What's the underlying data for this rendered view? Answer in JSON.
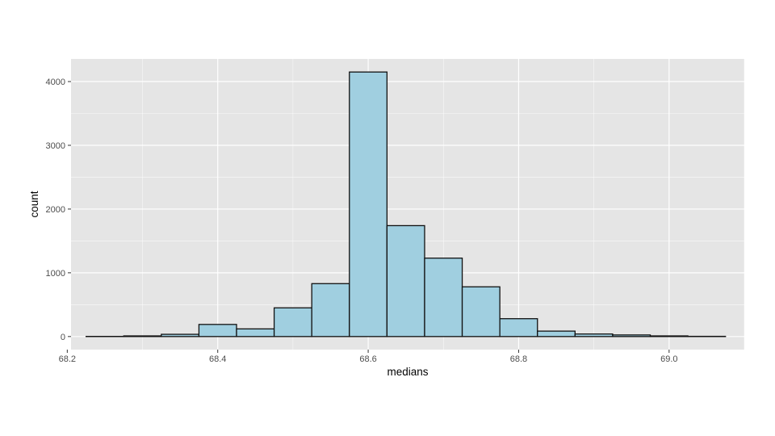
{
  "chart_data": {
    "type": "bar",
    "subtype": "histogram",
    "xlabel": "medians",
    "ylabel": "count",
    "xlim": [
      68.205,
      69.1
    ],
    "ylim": [
      -205,
      4355
    ],
    "x_ticks": [
      68.2,
      68.4,
      68.6,
      68.8,
      69.0
    ],
    "x_tick_labels": [
      "68.2",
      "68.4",
      "68.6",
      "68.8",
      "69.0"
    ],
    "y_ticks": [
      0,
      1000,
      2000,
      3000,
      4000
    ],
    "y_tick_labels": [
      "0",
      "1000",
      "2000",
      "3000",
      "4000"
    ],
    "bin_width": 0.05,
    "bins": [
      {
        "x0": 68.225,
        "x1": 68.275,
        "count": 2
      },
      {
        "x0": 68.275,
        "x1": 68.325,
        "count": 10
      },
      {
        "x0": 68.325,
        "x1": 68.375,
        "count": 35
      },
      {
        "x0": 68.375,
        "x1": 68.425,
        "count": 190
      },
      {
        "x0": 68.425,
        "x1": 68.475,
        "count": 120
      },
      {
        "x0": 68.475,
        "x1": 68.525,
        "count": 450
      },
      {
        "x0": 68.525,
        "x1": 68.575,
        "count": 830
      },
      {
        "x0": 68.575,
        "x1": 68.625,
        "count": 4150
      },
      {
        "x0": 68.625,
        "x1": 68.675,
        "count": 1740
      },
      {
        "x0": 68.675,
        "x1": 68.725,
        "count": 1230
      },
      {
        "x0": 68.725,
        "x1": 68.775,
        "count": 780
      },
      {
        "x0": 68.775,
        "x1": 68.825,
        "count": 280
      },
      {
        "x0": 68.825,
        "x1": 68.875,
        "count": 85
      },
      {
        "x0": 68.875,
        "x1": 68.925,
        "count": 40
      },
      {
        "x0": 68.925,
        "x1": 68.975,
        "count": 25
      },
      {
        "x0": 68.975,
        "x1": 69.025,
        "count": 10
      },
      {
        "x0": 69.025,
        "x1": 69.075,
        "count": 3
      }
    ],
    "grid": true,
    "legend": "none"
  },
  "colors": {
    "panel_background": "#e5e5e5",
    "grid_major": "#ffffff",
    "bar_fill": "#a0cfe0",
    "bar_stroke": "#111111"
  }
}
